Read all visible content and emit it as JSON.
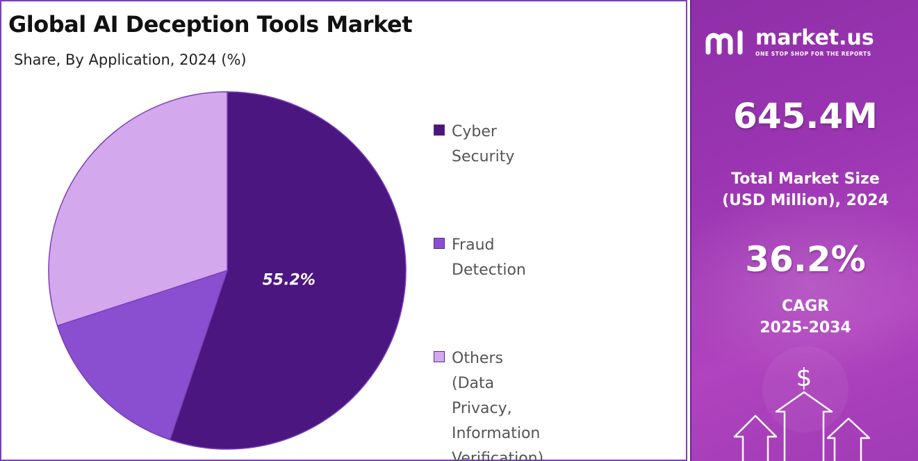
{
  "title": "Global AI Deception Tools Market",
  "subtitle": "Share, By Application, 2024 (%)",
  "chart_data": {
    "type": "pie",
    "slices": [
      {
        "label": "Cyber Security",
        "value": 55.2,
        "color": "#4b1680",
        "data_label": "55.2%"
      },
      {
        "label": "Fraud Detection",
        "value": 14.8,
        "color": "#8a4fd0",
        "data_label": ""
      },
      {
        "label": "Others (Data Privacy,\nInformation Verification)",
        "value": 30.0,
        "color": "#d4a8ec",
        "data_label": ""
      }
    ],
    "start_angle_deg": 0,
    "direction": "clockwise",
    "legend_position": "right"
  },
  "sidebar": {
    "brand": "market.us",
    "tagline": "ONE STOP SHOP FOR THE REPORTS",
    "market_size": "645.4M",
    "market_size_label": "Total Market Size\n(USD Million), 2024",
    "cagr": "36.2%",
    "cagr_label": "CAGR\n2025-2034",
    "decor_icon": "dollar-arrows-icon",
    "dollar_sign": "$"
  }
}
